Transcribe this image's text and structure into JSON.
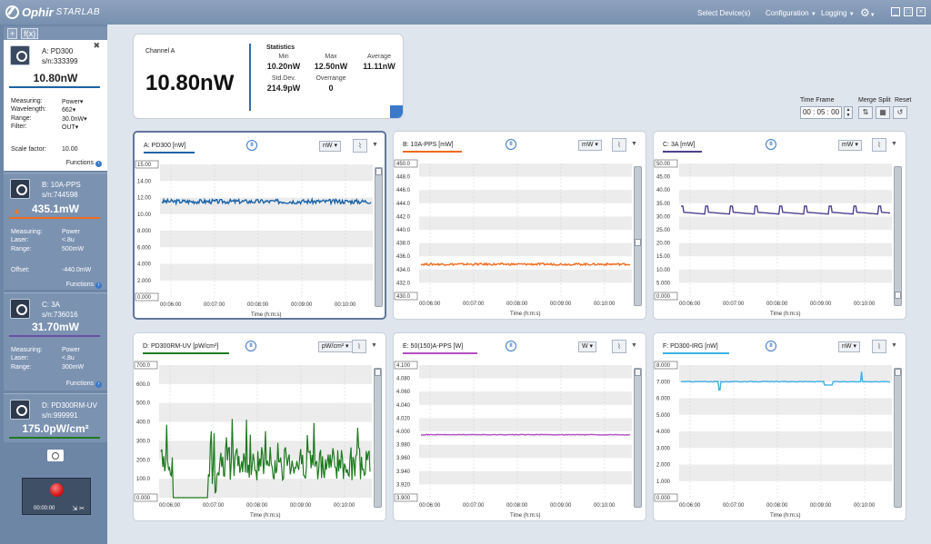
{
  "titlebar": {
    "brand": "Ophir",
    "product": "STARLAB",
    "menu": {
      "select_devices": "Select Device(s)",
      "configuration": "Configuration",
      "logging": "Logging"
    }
  },
  "sidebar": {
    "tools": [
      "+",
      "f(x)",
      "O"
    ],
    "devices": [
      {
        "name": "A: PD300",
        "sn": "s/n:333399",
        "value": "10.80nW",
        "color": "#1a63a8",
        "active": true,
        "params": [
          {
            "label": "Measuring:",
            "value": "Power"
          },
          {
            "label": "Wavelength:",
            "value": "662"
          },
          {
            "label": "Range:",
            "value": "30.0nW"
          },
          {
            "label": "Filter:",
            "value": "OUT"
          }
        ],
        "extra": {
          "label": "Scale factor:",
          "value": "10.00"
        },
        "functions": "Functions"
      },
      {
        "name": "B: 10A-PPS",
        "sn": "s/n:744598",
        "value": "435.1mW",
        "color": "#f06a1e",
        "active": false,
        "params": [
          {
            "label": "Measuring:",
            "value": "Power"
          },
          {
            "label": "Laser:",
            "value": "<.8u"
          },
          {
            "label": "Range:",
            "value": "500mW"
          }
        ],
        "extra": {
          "label": "Offset:",
          "value": "-440.0mW"
        },
        "functions": "Functions"
      },
      {
        "name": "C: 3A",
        "sn": "s/n:736016",
        "value": "31.70mW",
        "color": "#6c4fa6",
        "active": false,
        "params": [
          {
            "label": "Measuring:",
            "value": "Power"
          },
          {
            "label": "Laser:",
            "value": "<.8u"
          },
          {
            "label": "Range:",
            "value": "300mW"
          }
        ],
        "functions": "Functions"
      },
      {
        "name": "D: PD300RM-UV",
        "sn": "s/n:999991",
        "value": "175.0pW/cm²",
        "color": "#1f7a1f",
        "active": false
      }
    ],
    "record_time": "00:00:00"
  },
  "stats": {
    "channel": "Channel A",
    "value": "10.80nW",
    "heading": "Statistics",
    "min_label": "Min",
    "min": "10.20nW",
    "max_label": "Max",
    "max": "12.50nW",
    "avg_label": "Average",
    "avg": "11.11nW",
    "std_label": "Std.Dev.",
    "std": "214.9pW",
    "over_label": "Overrange",
    "over": "0"
  },
  "timeframe": {
    "label": "Time Frame",
    "value": "00 : 05 : 00",
    "merge": "Merge",
    "split": "Split",
    "reset": "Reset"
  },
  "charts": [
    {
      "title": "A: PD300 [nW]",
      "unit": "nW",
      "color": "#1a63a8",
      "ymin": 0,
      "ymax": 15,
      "yticks": [
        "15.00",
        "14.00",
        "12.00",
        "10.00",
        "8.000",
        "6.000",
        "4.000",
        "2.000",
        "0.000"
      ],
      "xticks": [
        "00:06:00",
        "00:07:00",
        "00:08:00",
        "00:09:00",
        "00:10:00"
      ],
      "xlabel": "Time (h:m:s)",
      "level": 10.8,
      "noise": 0.25,
      "kind": "flat",
      "thumb": 0.0
    },
    {
      "title": "B: 10A-PPS [mW]",
      "unit": "mW",
      "color": "#f06a1e",
      "ymin": 430,
      "ymax": 450,
      "yticks": [
        "450.0",
        "448.0",
        "446.0",
        "444.0",
        "442.0",
        "440.0",
        "438.0",
        "436.0",
        "434.0",
        "432.0",
        "430.0"
      ],
      "xticks": [
        "00:06:00",
        "00:07:00",
        "00:08:00",
        "00:09:00",
        "00:10:00"
      ],
      "xlabel": "Time (h:m:s)",
      "level": 434.8,
      "noise": 0.15,
      "kind": "flat",
      "thumb": 0.55
    },
    {
      "title": "C: 3A [mW]",
      "unit": "mW",
      "color": "#4f3f8f",
      "ymin": 0,
      "ymax": 50,
      "yticks": [
        "50.00",
        "45.00",
        "40.00",
        "35.00",
        "30.00",
        "25.00",
        "20.00",
        "15.00",
        "10.00",
        "5.000",
        "0.000"
      ],
      "xticks": [
        "00:06:00",
        "00:07:00",
        "00:08:00",
        "00:09:00",
        "00:10:00"
      ],
      "xlabel": "Time (h:m:s)",
      "level": 31.7,
      "noise": 0.1,
      "kind": "saw",
      "thumb": 0.95
    },
    {
      "title": "D: PD300RM-UV [pW/cm²]",
      "unit": "pW/cm²",
      "color": "#1f7a1f",
      "ymin": 0,
      "ymax": 700,
      "yticks": [
        "700.0",
        "600.0",
        "500.0",
        "400.0",
        "300.0",
        "200.0",
        "100.0",
        "0.000"
      ],
      "xticks": [
        "00:06:00",
        "00:07:00",
        "00:08:00",
        "00:09:00",
        "00:10:00"
      ],
      "xlabel": "Time (h:m:s)",
      "level": 180,
      "noise": 90,
      "kind": "noisy",
      "thumb": 0.0
    },
    {
      "title": "E: 50(150)A-PPS [W]",
      "unit": "W",
      "color": "#b04fc0",
      "ymin": 3.9,
      "ymax": 4.1,
      "yticks": [
        "4.100",
        "4.080",
        "4.060",
        "4.040",
        "4.020",
        "4.000",
        "3.980",
        "3.960",
        "3.940",
        "3.920",
        "3.900"
      ],
      "xticks": [
        "00:06:00",
        "00:07:00",
        "00:08:00",
        "00:09:00",
        "00:10:00"
      ],
      "xlabel": "Time (h:m:s)",
      "level": 3.995,
      "noise": 0.0005,
      "kind": "flat",
      "thumb": 0.0
    },
    {
      "title": "F: PD300-IRG [nW]",
      "unit": "nW",
      "color": "#3fb0e6",
      "ymin": 0,
      "ymax": 8,
      "yticks": [
        "8.000",
        "7.000",
        "6.000",
        "5.000",
        "4.000",
        "3.000",
        "2.000",
        "1.000",
        "0.000"
      ],
      "xticks": [
        "00:06:00",
        "00:07:00",
        "00:08:00",
        "00:09:00",
        "00:10:00"
      ],
      "xlabel": "Time (h:m:s)",
      "level": 7.0,
      "noise": 0.02,
      "kind": "dips",
      "thumb": 0.0
    }
  ]
}
